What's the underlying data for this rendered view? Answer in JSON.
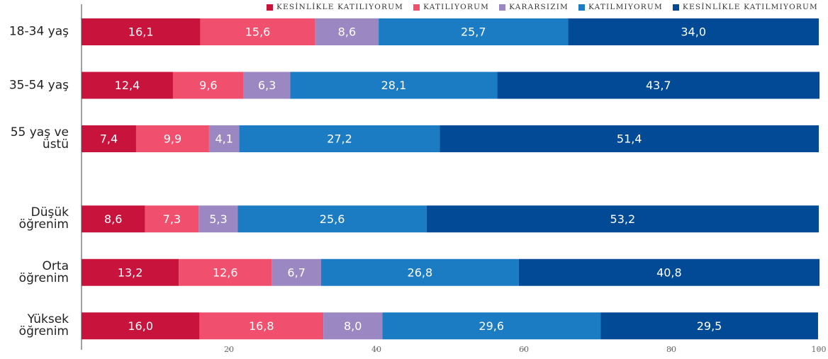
{
  "chart_data": {
    "type": "stacked-bar-horizontal",
    "categories": [
      "18-34 yaş",
      "35-54 yaş",
      "55 yaş ve üstü",
      null,
      "Düşük öğrenim",
      "Orta öğrenim",
      "Yüksek öğrenim"
    ],
    "series": [
      {
        "name": "KESİNLİKLE KATILIYORUM",
        "color": "#c8143c",
        "values": [
          16.1,
          12.4,
          7.4,
          null,
          8.6,
          13.2,
          16.0
        ],
        "value_labels": [
          "16,1",
          "12,4",
          "7,4",
          null,
          "8,6",
          "13,2",
          "16,0"
        ]
      },
      {
        "name": "KATILIYORUM",
        "color": "#f0506e",
        "values": [
          15.6,
          9.6,
          9.9,
          null,
          7.3,
          12.6,
          16.8
        ],
        "value_labels": [
          "15,6",
          "9,6",
          "9,9",
          null,
          "7,3",
          "12,6",
          "16,8"
        ]
      },
      {
        "name": "KARARSIZIM",
        "color": "#9b87c1",
        "values": [
          8.6,
          6.3,
          4.1,
          null,
          5.3,
          6.7,
          8.0
        ],
        "value_labels": [
          "8,6",
          "6,3",
          "4,1",
          null,
          "5,3",
          "6,7",
          "8,0"
        ]
      },
      {
        "name": "KATILMIYORUM",
        "color": "#1b7cc4",
        "values": [
          25.7,
          28.1,
          27.2,
          null,
          25.6,
          26.8,
          29.6
        ],
        "value_labels": [
          "25,7",
          "28,1",
          "27,2",
          null,
          "25,6",
          "26,8",
          "29,6"
        ]
      },
      {
        "name": "KESİNLİKLE KATILMIYORUM",
        "color": "#034a96",
        "values": [
          34.0,
          43.7,
          51.4,
          null,
          53.2,
          40.8,
          29.5
        ],
        "value_labels": [
          "34,0",
          "43,7",
          "51,4",
          null,
          "53,2",
          "40,8",
          "29,5"
        ]
      }
    ],
    "xlim": [
      0,
      100
    ],
    "xticks": [
      20,
      40,
      60,
      80,
      100
    ]
  }
}
